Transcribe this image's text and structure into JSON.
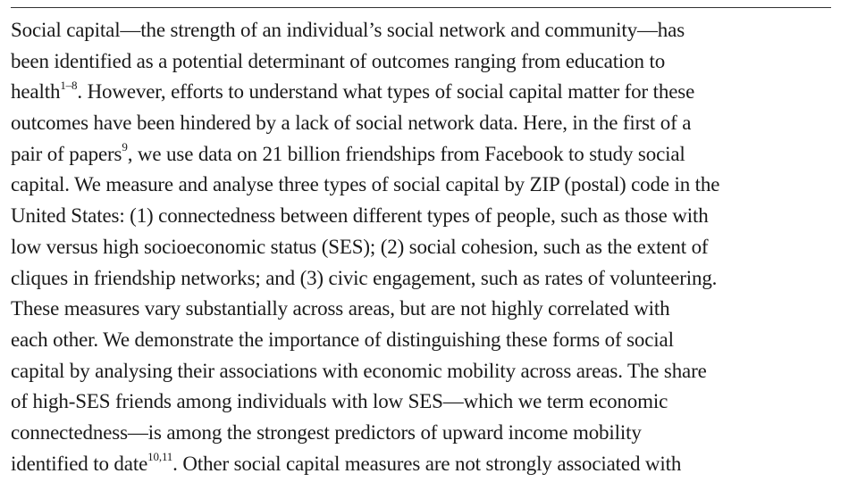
{
  "abstract": {
    "lines": [
      {
        "parts": [
          "Social capital—the strength of an individual’s social network and community—has"
        ]
      },
      {
        "parts": [
          "been identified as a potential determinant of outcomes ranging from education to"
        ]
      },
      {
        "parts": [
          "health",
          "1–8",
          ". However, efforts to understand what types of social capital matter for these"
        ]
      },
      {
        "parts": [
          "outcomes have been hindered by a lack of social network data. Here, in the first of a"
        ]
      },
      {
        "parts": [
          "pair of papers",
          "9",
          ", we use data on 21 billion friendships from Facebook to study social"
        ]
      },
      {
        "parts": [
          "capital. We measure and analyse three types of social capital by ZIP (postal) code in the"
        ]
      },
      {
        "parts": [
          "United States: (1) connectedness between different types of people, such as those with"
        ]
      },
      {
        "parts": [
          "low versus high socioeconomic status (SES); (2) social cohesion, such as the extent of"
        ]
      },
      {
        "parts": [
          "cliques in friendship networks; and (3) civic engagement, such as rates of volunteering."
        ]
      },
      {
        "parts": [
          "These measures vary substantially across areas, but are not highly correlated with"
        ]
      },
      {
        "parts": [
          "each other. We demonstrate the importance of distinguishing these forms of social"
        ]
      },
      {
        "parts": [
          "capital by analysing their associations with economic mobility across areas. The share"
        ]
      },
      {
        "parts": [
          "of high-SES friends among individuals with low SES—which we term economic"
        ]
      },
      {
        "parts": [
          "connectedness—is among the strongest predictors of upward income mobility"
        ]
      },
      {
        "parts": [
          "identified to date",
          "10,11",
          ". Other social capital measures are not strongly associated with"
        ]
      }
    ]
  }
}
